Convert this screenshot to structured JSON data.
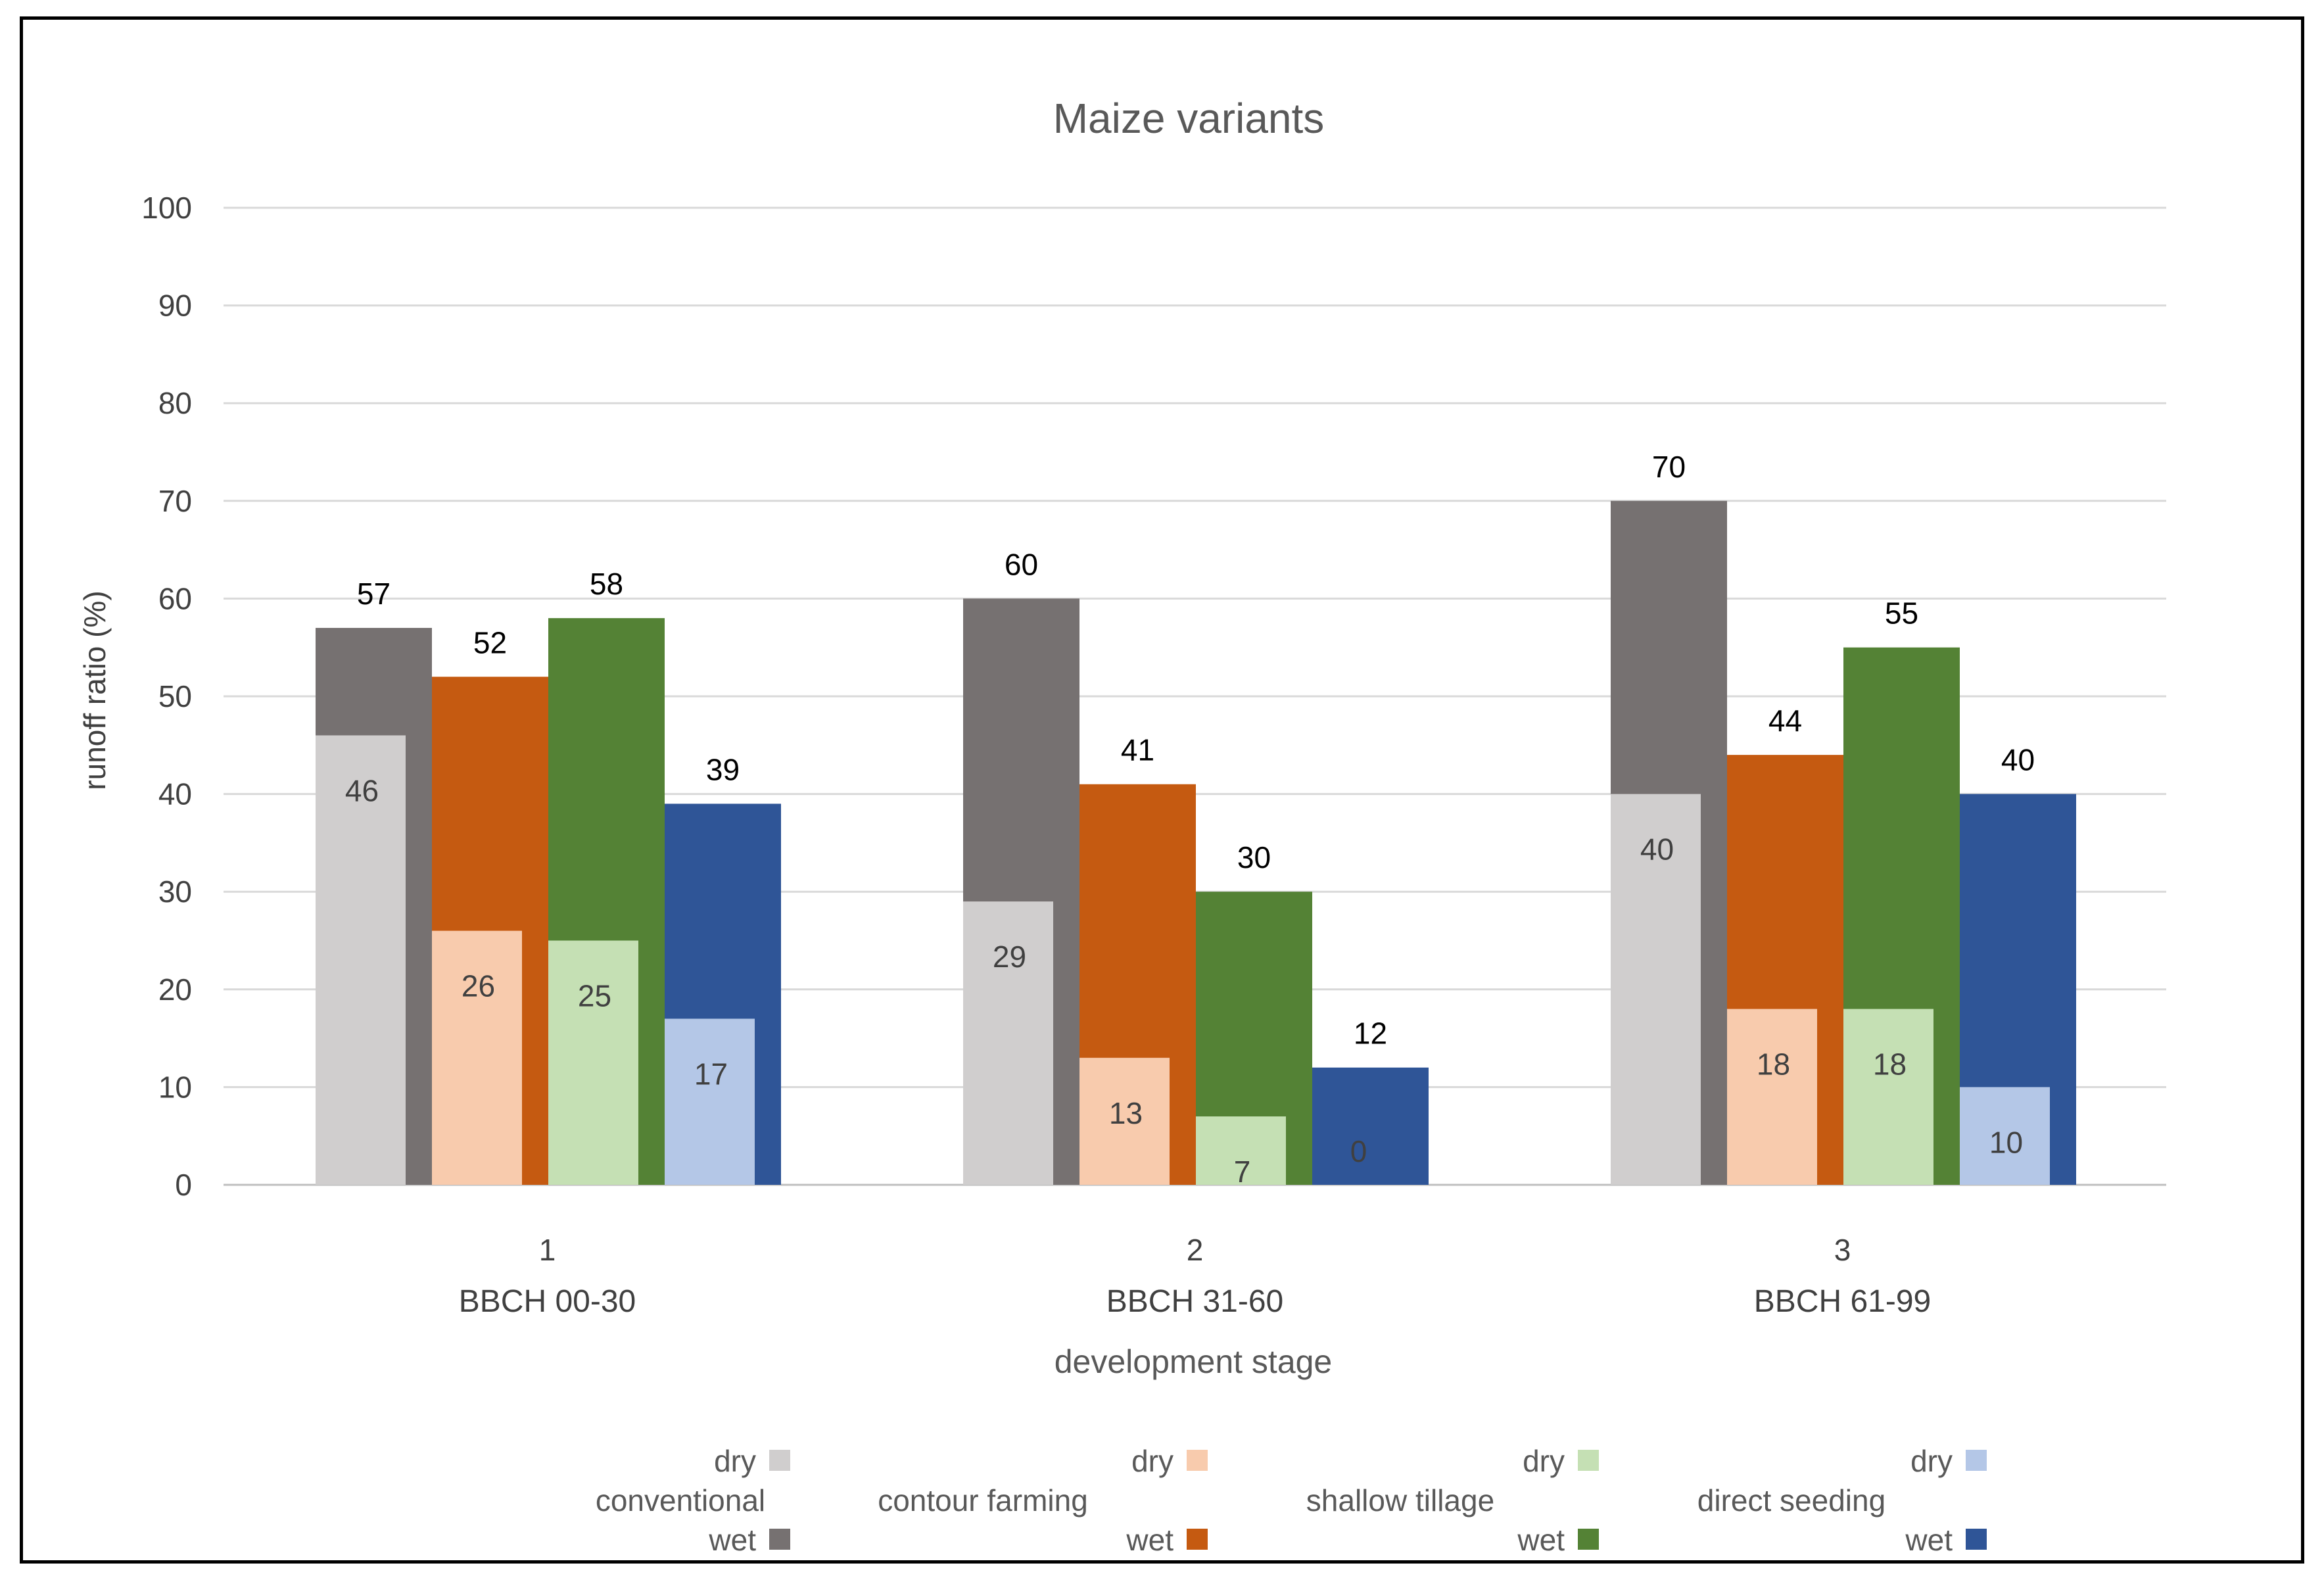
{
  "chart_data": {
    "type": "bar",
    "title": "Maize variants",
    "xlabel": "development stage",
    "ylabel": "runoff ratio (%)",
    "ylim": [
      0,
      100
    ],
    "yticks": [
      0,
      10,
      20,
      30,
      40,
      50,
      60,
      70,
      80,
      90,
      100
    ],
    "grid": true,
    "legend_position": "bottom",
    "categories": [
      {
        "index": "1",
        "label": "BBCH 00-30"
      },
      {
        "index": "2",
        "label": "BBCH 31-60"
      },
      {
        "index": "3",
        "label": "BBCH 61-99"
      }
    ],
    "groups": [
      {
        "name": "conventional",
        "dry": {
          "label": "dry",
          "color": "#d0cece",
          "values": [
            46,
            29,
            40
          ]
        },
        "wet": {
          "label": "wet",
          "color": "#767171",
          "values": [
            57,
            60,
            70
          ]
        }
      },
      {
        "name": "contour farming",
        "dry": {
          "label": "dry",
          "color": "#f8cbad",
          "values": [
            26,
            13,
            18
          ]
        },
        "wet": {
          "label": "wet",
          "color": "#c55a11",
          "values": [
            52,
            41,
            44
          ]
        }
      },
      {
        "name": "shallow tillage",
        "dry": {
          "label": "dry",
          "color": "#c5e0b4",
          "values": [
            25,
            7,
            18
          ]
        },
        "wet": {
          "label": "wet",
          "color": "#548235",
          "values": [
            58,
            30,
            55
          ]
        }
      },
      {
        "name": "direct seeding",
        "dry": {
          "label": "dry",
          "color": "#b4c7e7",
          "values": [
            17,
            0,
            10
          ]
        },
        "wet": {
          "label": "wet",
          "color": "#2f5597",
          "values": [
            39,
            12,
            40
          ]
        }
      }
    ]
  }
}
